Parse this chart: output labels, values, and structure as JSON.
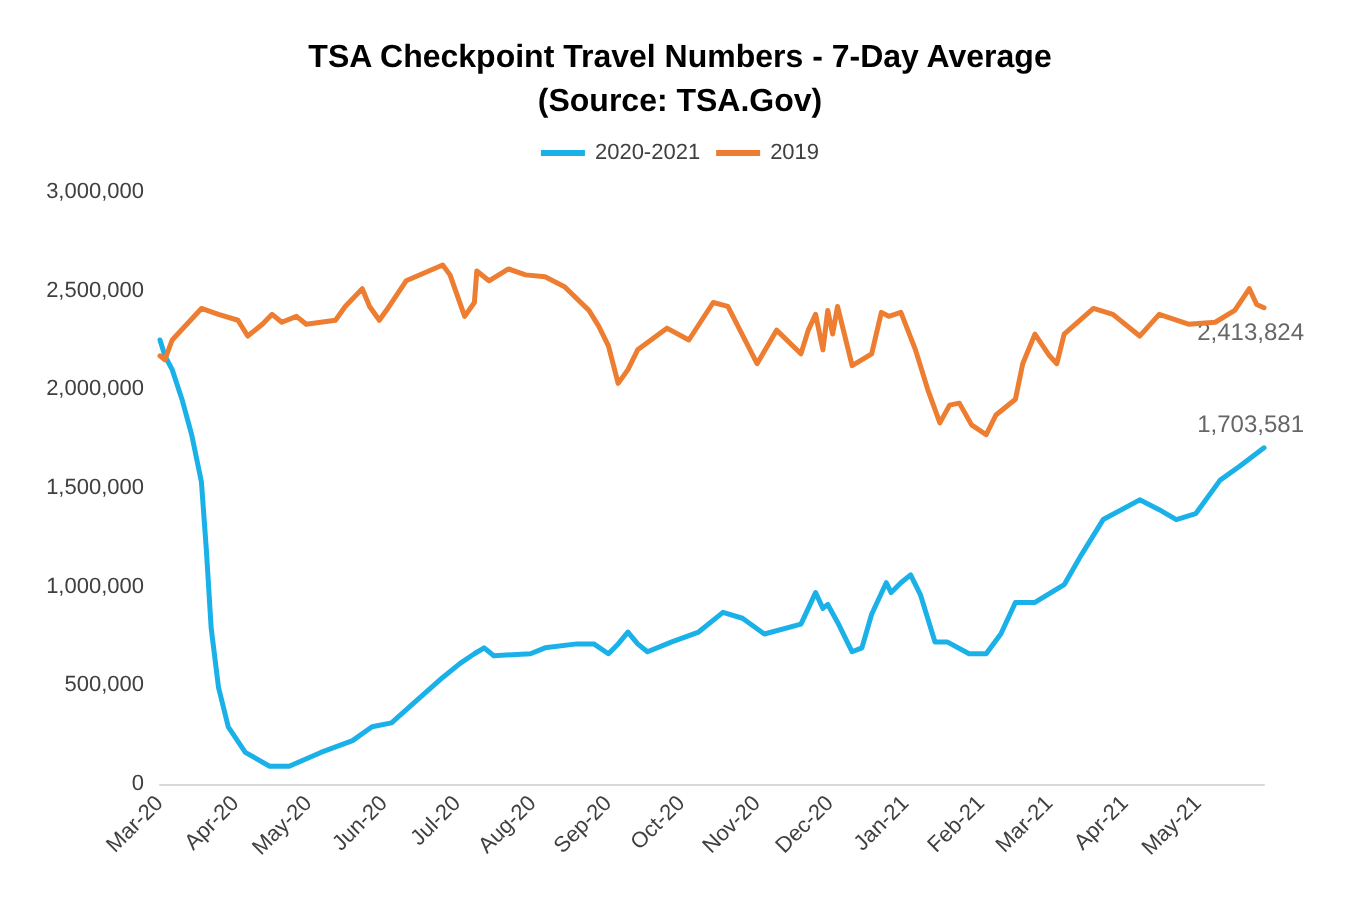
{
  "chart_data": {
    "type": "line",
    "title": "TSA Checkpoint Travel Numbers - 7-Day Average",
    "subtitle": "(Source: TSA.Gov)",
    "series": [
      {
        "name": "2020-2021",
        "color": "#1ab0e8",
        "x": [
          "2020-03-01",
          "2020-03-03",
          "2020-03-06",
          "2020-03-10",
          "2020-03-14",
          "2020-03-18",
          "2020-03-20",
          "2020-03-22",
          "2020-03-25",
          "2020-03-29",
          "2020-04-05",
          "2020-04-15",
          "2020-04-23",
          "2020-05-06",
          "2020-05-19",
          "2020-05-27",
          "2020-06-04",
          "2020-06-14",
          "2020-06-25",
          "2020-07-02",
          "2020-07-08",
          "2020-07-12",
          "2020-07-16",
          "2020-07-31",
          "2020-08-06",
          "2020-08-19",
          "2020-08-26",
          "2020-09-01",
          "2020-09-05",
          "2020-09-09",
          "2020-09-13",
          "2020-09-17",
          "2020-09-27",
          "2020-10-08",
          "2020-10-18",
          "2020-10-26",
          "2020-11-04",
          "2020-11-19",
          "2020-11-22",
          "2020-11-25",
          "2020-11-28",
          "2020-11-30",
          "2020-12-04",
          "2020-12-10",
          "2020-12-14",
          "2020-12-18",
          "2020-12-24",
          "2020-12-26",
          "2020-12-30",
          "2021-01-03",
          "2021-01-07",
          "2021-01-13",
          "2021-01-18",
          "2021-01-27",
          "2021-02-03",
          "2021-02-09",
          "2021-02-15",
          "2021-02-23",
          "2021-03-07",
          "2021-03-14",
          "2021-03-23",
          "2021-04-07",
          "2021-04-15",
          "2021-04-22",
          "2021-04-30",
          "2021-05-10",
          "2021-05-18",
          "2021-05-28"
        ],
        "values": [
          2250000,
          2170000,
          2100000,
          1950000,
          1770000,
          1530000,
          1190000,
          790000,
          490000,
          290000,
          160000,
          90000,
          90000,
          160000,
          220000,
          290000,
          310000,
          420000,
          540000,
          610000,
          660000,
          690000,
          650000,
          660000,
          690000,
          710000,
          710000,
          660000,
          710000,
          770000,
          710000,
          670000,
          720000,
          770000,
          870000,
          840000,
          760000,
          810000,
          890000,
          970000,
          890000,
          910000,
          820000,
          670000,
          690000,
          860000,
          1020000,
          970000,
          1020000,
          1060000,
          960000,
          720000,
          720000,
          660000,
          660000,
          760000,
          920000,
          920000,
          1010000,
          1160000,
          1340000,
          1440000,
          1390000,
          1340000,
          1370000,
          1540000,
          1610000,
          1703581
        ]
      },
      {
        "name": "2019",
        "color": "#ed7d31",
        "x": [
          "2020-03-01",
          "2020-03-03",
          "2020-03-06",
          "2020-03-12",
          "2020-03-18",
          "2020-03-25",
          "2020-04-02",
          "2020-04-06",
          "2020-04-12",
          "2020-04-16",
          "2020-04-20",
          "2020-04-26",
          "2020-04-30",
          "2020-05-12",
          "2020-05-16",
          "2020-05-23",
          "2020-05-26",
          "2020-05-30",
          "2020-06-03",
          "2020-06-10",
          "2020-06-25",
          "2020-06-28",
          "2020-07-04",
          "2020-07-08",
          "2020-07-09",
          "2020-07-14",
          "2020-07-22",
          "2020-07-29",
          "2020-08-06",
          "2020-08-14",
          "2020-08-24",
          "2020-08-28",
          "2020-09-01",
          "2020-09-05",
          "2020-09-09",
          "2020-09-13",
          "2020-09-25",
          "2020-10-04",
          "2020-10-14",
          "2020-10-20",
          "2020-11-01",
          "2020-11-09",
          "2020-11-19",
          "2020-11-22",
          "2020-11-25",
          "2020-11-28",
          "2020-11-30",
          "2020-12-02",
          "2020-12-04",
          "2020-12-10",
          "2020-12-18",
          "2020-12-22",
          "2020-12-25",
          "2020-12-30",
          "2021-01-05",
          "2021-01-10",
          "2021-01-15",
          "2021-01-19",
          "2021-01-23",
          "2021-01-28",
          "2021-02-03",
          "2021-02-07",
          "2021-02-15",
          "2021-02-18",
          "2021-02-23",
          "2021-03-01",
          "2021-03-04",
          "2021-03-07",
          "2021-03-19",
          "2021-03-27",
          "2021-04-07",
          "2021-04-15",
          "2021-04-27",
          "2021-05-08",
          "2021-05-16",
          "2021-05-22",
          "2021-05-25",
          "2021-05-28"
        ],
        "values": [
          2170000,
          2150000,
          2250000,
          2330000,
          2410000,
          2380000,
          2350000,
          2270000,
          2330000,
          2380000,
          2340000,
          2370000,
          2330000,
          2350000,
          2420000,
          2510000,
          2420000,
          2350000,
          2420000,
          2550000,
          2630000,
          2580000,
          2370000,
          2440000,
          2600000,
          2550000,
          2610000,
          2580000,
          2570000,
          2520000,
          2400000,
          2320000,
          2220000,
          2030000,
          2100000,
          2200000,
          2310000,
          2250000,
          2440000,
          2420000,
          2130000,
          2300000,
          2180000,
          2300000,
          2380000,
          2200000,
          2400000,
          2280000,
          2420000,
          2120000,
          2180000,
          2390000,
          2370000,
          2390000,
          2200000,
          2000000,
          1830000,
          1920000,
          1930000,
          1820000,
          1770000,
          1870000,
          1950000,
          2130000,
          2280000,
          2170000,
          2130000,
          2280000,
          2410000,
          2380000,
          2270000,
          2380000,
          2330000,
          2340000,
          2400000,
          2510000,
          2430000,
          2413824
        ]
      }
    ],
    "annotations": [
      {
        "text": "2,413,824",
        "x": "2021-05-28",
        "y": 2413824
      },
      {
        "text": "1,703,581",
        "x": "2021-05-28",
        "y": 1703581
      }
    ],
    "xlim": [
      "2020-03-01",
      "2021-05-28"
    ],
    "xticks": [
      {
        "value": "2020-03-01",
        "label": "Mar-20"
      },
      {
        "value": "2020-04-01",
        "label": "Apr-20"
      },
      {
        "value": "2020-05-01",
        "label": "May-20"
      },
      {
        "value": "2020-06-01",
        "label": "Jun-20"
      },
      {
        "value": "2020-07-01",
        "label": "Jul-20"
      },
      {
        "value": "2020-08-01",
        "label": "Aug-20"
      },
      {
        "value": "2020-09-01",
        "label": "Sep-20"
      },
      {
        "value": "2020-10-01",
        "label": "Oct-20"
      },
      {
        "value": "2020-11-01",
        "label": "Nov-20"
      },
      {
        "value": "2020-12-01",
        "label": "Dec-20"
      },
      {
        "value": "2021-01-01",
        "label": "Jan-21"
      },
      {
        "value": "2021-02-01",
        "label": "Feb-21"
      },
      {
        "value": "2021-03-01",
        "label": "Mar-21"
      },
      {
        "value": "2021-04-01",
        "label": "Apr-21"
      },
      {
        "value": "2021-05-01",
        "label": "May-21"
      }
    ],
    "ylim": [
      0,
      3000000
    ],
    "yticks": [
      {
        "value": 0,
        "label": "0"
      },
      {
        "value": 500000,
        "label": "500,000"
      },
      {
        "value": 1000000,
        "label": "1,000,000"
      },
      {
        "value": 1500000,
        "label": "1,500,000"
      },
      {
        "value": 2000000,
        "label": "2,000,000"
      },
      {
        "value": 2500000,
        "label": "2,500,000"
      },
      {
        "value": 3000000,
        "label": "3,000,000"
      }
    ],
    "grid": false,
    "legend": "top",
    "marker": "none",
    "line_style": "solid"
  }
}
